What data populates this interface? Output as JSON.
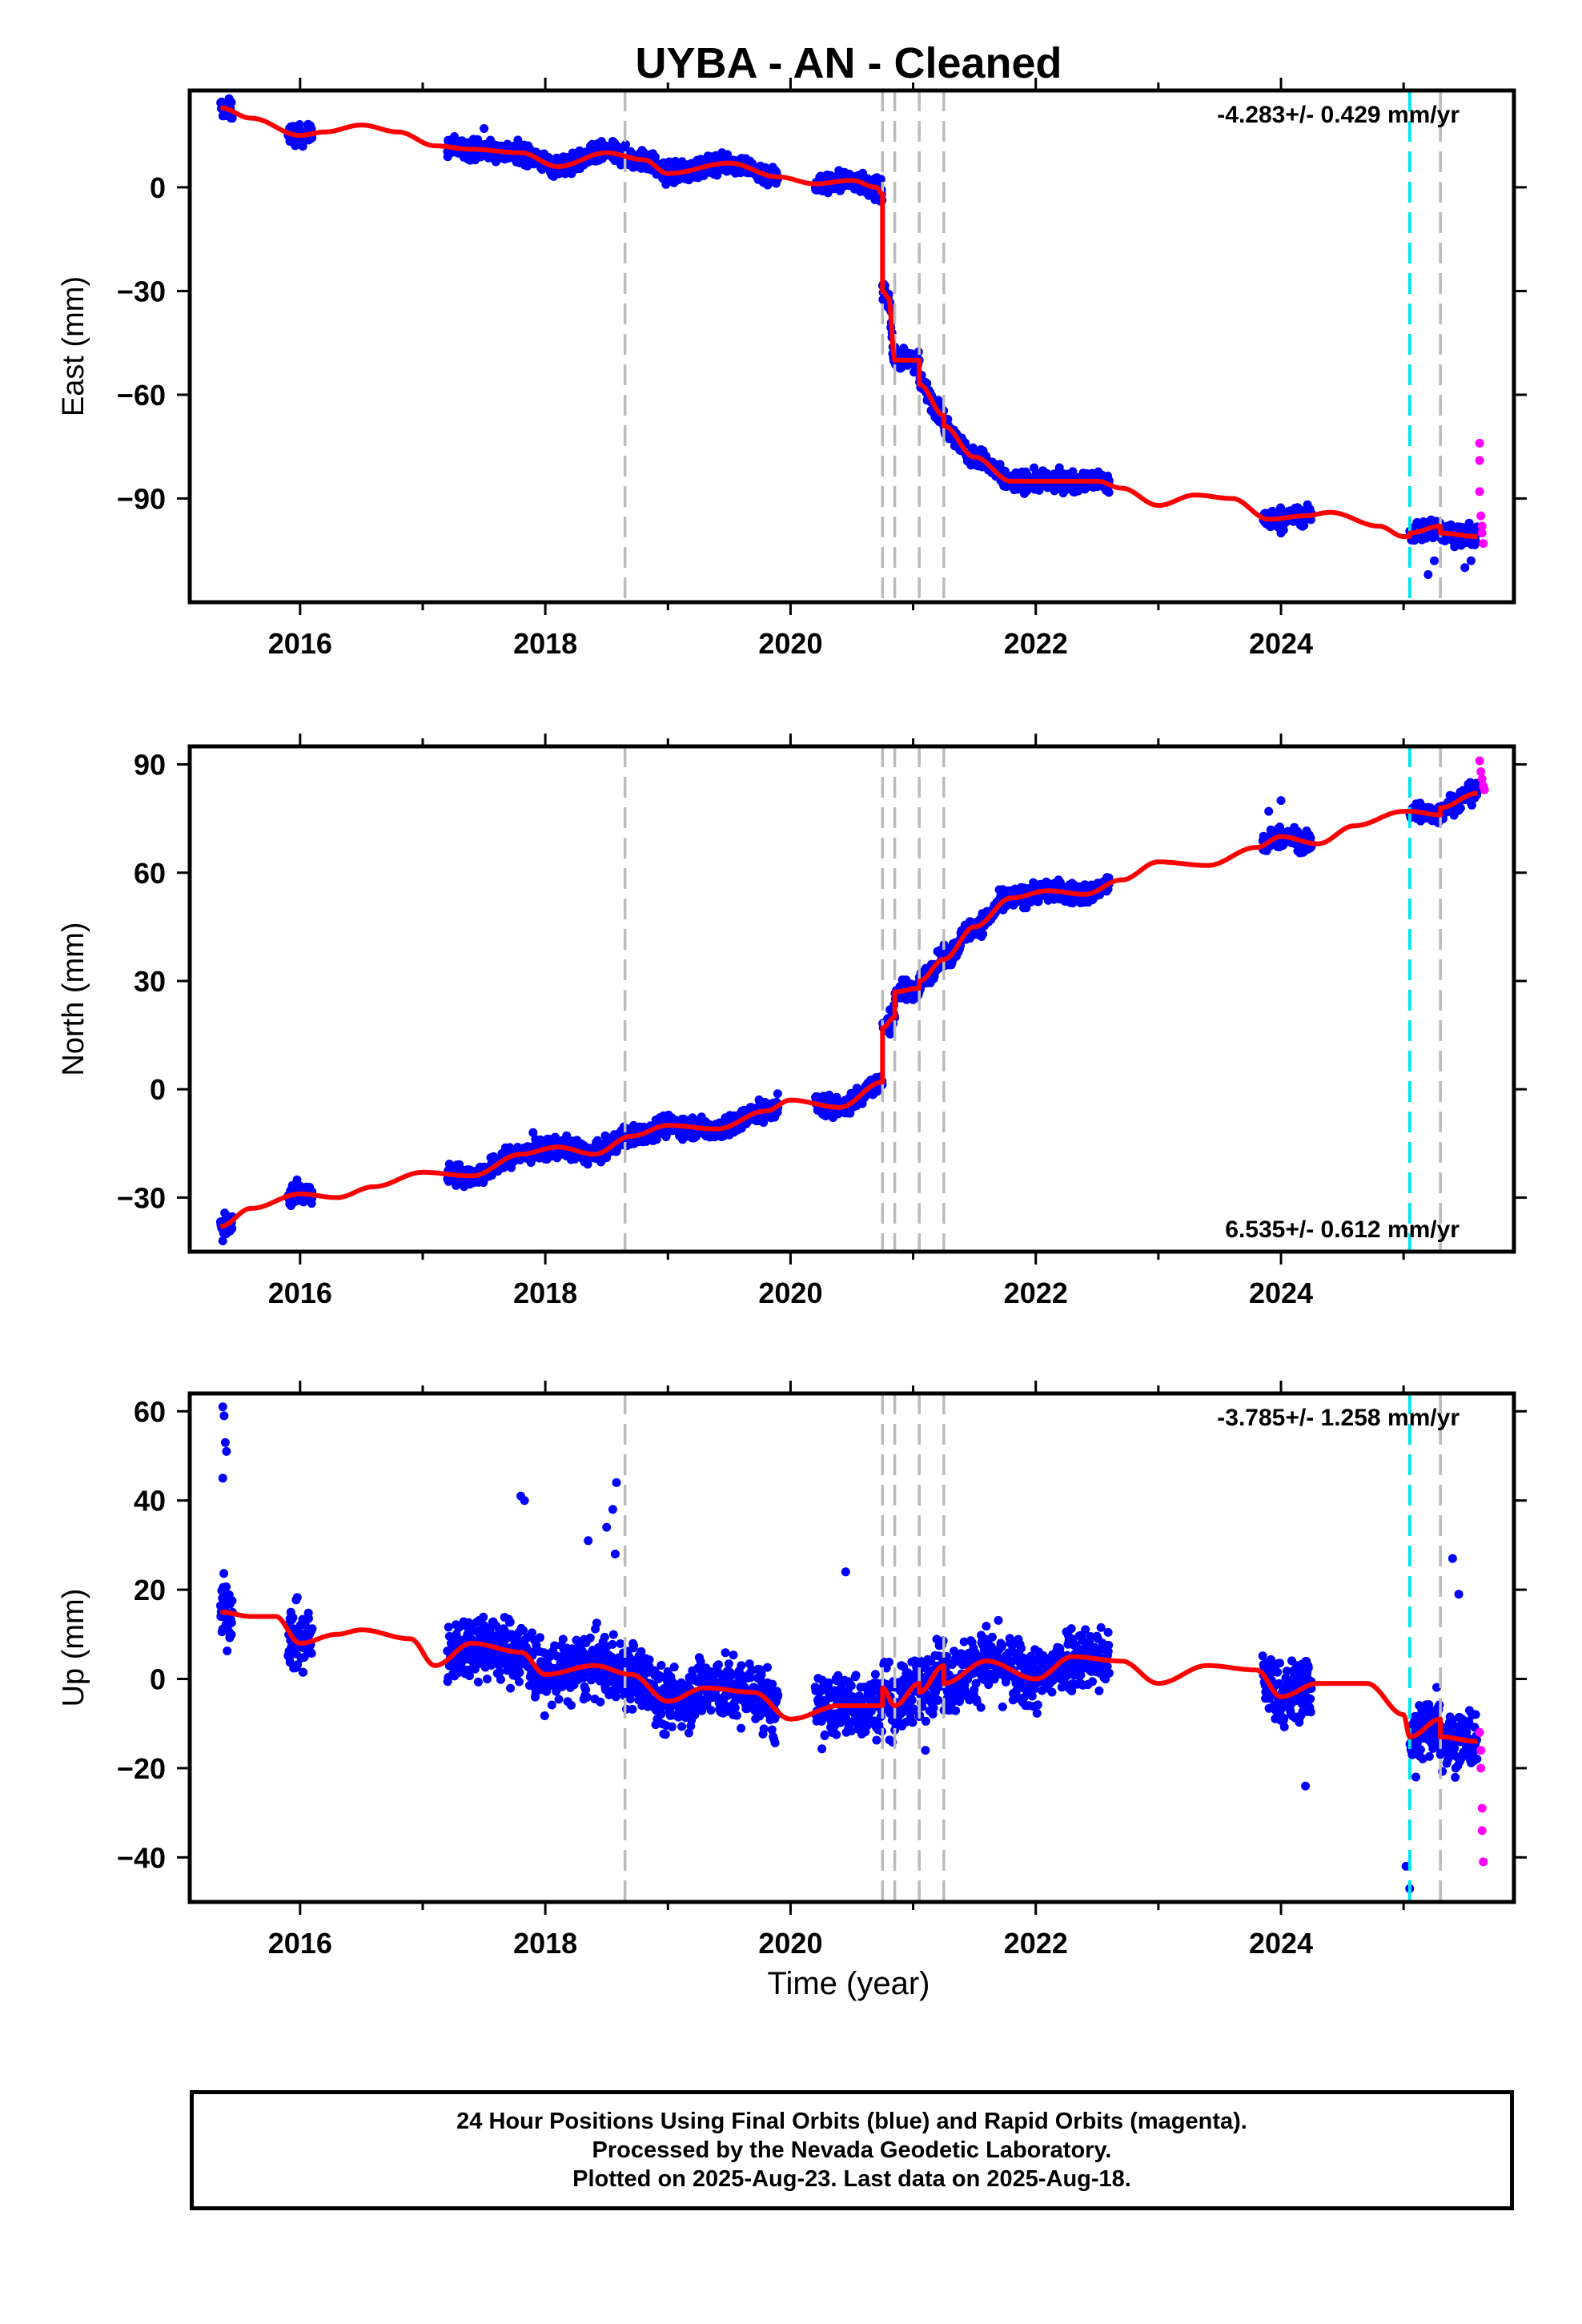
{
  "title": "UYBA  - AN - Cleaned",
  "xlabel": "Time (year)",
  "footer": {
    "line1": "24 Hour Positions Using Final Orbits (blue) and Rapid Orbits (magenta).",
    "line2": "Processed by the Nevada Geodetic Laboratory.",
    "line3": "Plotted on 2025-Aug-23. Last data on 2025-Aug-18."
  },
  "colors": {
    "final_orbits": "#0000ff",
    "rapid_orbits": "#ff00ff",
    "model": "#ff0000",
    "equipment_change": "#bbbbbb",
    "earthquake": "#00e5ee"
  },
  "chart_data": [
    {
      "type": "scatter",
      "ylabel": "East (mm)",
      "rate": "-4.283+/- 0.429 mm/yr",
      "rate_position": "top-right",
      "xlim": [
        2015.1,
        2025.9
      ],
      "ylim": [
        -120,
        28
      ],
      "xticks": [
        2016,
        2018,
        2020,
        2022,
        2024
      ],
      "yticks": [
        0,
        -30,
        -60,
        -90
      ],
      "grid": false,
      "equipment_changes": [
        2018.65,
        2020.75,
        2020.85,
        2021.05,
        2021.25,
        2025.3
      ],
      "earthquakes": [
        2025.05
      ],
      "data_segments": [
        [
          2015.35,
          2015.45
        ],
        [
          2015.9,
          2016.1
        ],
        [
          2017.2,
          2019.9
        ],
        [
          2020.2,
          2022.6
        ],
        [
          2023.85,
          2024.25
        ],
        [
          2025.05,
          2025.6
        ]
      ],
      "model_knots": [
        [
          2015.35,
          23
        ],
        [
          2015.6,
          20
        ],
        [
          2016.0,
          15
        ],
        [
          2016.2,
          16
        ],
        [
          2016.5,
          18
        ],
        [
          2016.8,
          16
        ],
        [
          2017.1,
          12
        ],
        [
          2017.4,
          11
        ],
        [
          2017.8,
          10
        ],
        [
          2018.1,
          6
        ],
        [
          2018.5,
          10
        ],
        [
          2018.8,
          8
        ],
        [
          2019.0,
          4
        ],
        [
          2019.5,
          7
        ],
        [
          2019.9,
          3
        ],
        [
          2020.2,
          1
        ],
        [
          2020.5,
          2
        ],
        [
          2020.7,
          0
        ],
        [
          2020.75,
          -2
        ],
        [
          2020.75,
          -30
        ],
        [
          2020.8,
          -32
        ],
        [
          2020.85,
          -50
        ],
        [
          2021.05,
          -50
        ],
        [
          2021.05,
          -57
        ],
        [
          2021.25,
          -66
        ],
        [
          2021.25,
          -69
        ],
        [
          2021.5,
          -78
        ],
        [
          2021.8,
          -85
        ],
        [
          2022.2,
          -85
        ],
        [
          2022.5,
          -85
        ],
        [
          2022.7,
          -87
        ],
        [
          2023.0,
          -92
        ],
        [
          2023.3,
          -89
        ],
        [
          2023.6,
          -90
        ],
        [
          2023.9,
          -96
        ],
        [
          2024.2,
          -95
        ],
        [
          2024.4,
          -94
        ],
        [
          2024.8,
          -98
        ],
        [
          2025.0,
          -101
        ],
        [
          2025.05,
          -101
        ],
        [
          2025.05,
          -100
        ],
        [
          2025.3,
          -98
        ],
        [
          2025.3,
          -100
        ],
        [
          2025.6,
          -101
        ]
      ],
      "rapid_points": [
        [
          2025.62,
          -74
        ],
        [
          2025.62,
          -79
        ],
        [
          2025.62,
          -88
        ],
        [
          2025.63,
          -95
        ],
        [
          2025.64,
          -98
        ],
        [
          2025.64,
          -100
        ],
        [
          2025.65,
          -103
        ]
      ],
      "outliers": [
        [
          2015.37,
          24
        ],
        [
          2015.4,
          22
        ],
        [
          2015.43,
          25
        ],
        [
          2017.5,
          17
        ],
        [
          2018.45,
          13
        ],
        [
          2024.0,
          -100
        ],
        [
          2025.2,
          -112
        ],
        [
          2025.25,
          -108
        ],
        [
          2025.5,
          -110
        ],
        [
          2025.55,
          -108
        ]
      ]
    },
    {
      "type": "scatter",
      "ylabel": "North (mm)",
      "rate": "6.535+/- 0.612 mm/yr",
      "rate_position": "bottom-right",
      "xlim": [
        2015.1,
        2025.9
      ],
      "ylim": [
        -45,
        95
      ],
      "xticks": [
        2016,
        2018,
        2020,
        2022,
        2024
      ],
      "yticks": [
        90,
        60,
        30,
        0,
        -30
      ],
      "grid": false,
      "equipment_changes": [
        2018.65,
        2020.75,
        2020.85,
        2021.05,
        2021.25,
        2025.3
      ],
      "earthquakes": [
        2025.05
      ],
      "data_segments": [
        [
          2015.35,
          2015.45
        ],
        [
          2015.9,
          2016.1
        ],
        [
          2017.2,
          2019.9
        ],
        [
          2020.2,
          2022.6
        ],
        [
          2023.85,
          2024.25
        ],
        [
          2025.05,
          2025.6
        ]
      ],
      "model_knots": [
        [
          2015.35,
          -38
        ],
        [
          2015.6,
          -33
        ],
        [
          2016.0,
          -29
        ],
        [
          2016.3,
          -30
        ],
        [
          2016.6,
          -27
        ],
        [
          2017.0,
          -23
        ],
        [
          2017.4,
          -24
        ],
        [
          2017.8,
          -18
        ],
        [
          2018.1,
          -16
        ],
        [
          2018.4,
          -18
        ],
        [
          2018.7,
          -13
        ],
        [
          2019.0,
          -10
        ],
        [
          2019.4,
          -11
        ],
        [
          2019.8,
          -6
        ],
        [
          2020.0,
          -3
        ],
        [
          2020.4,
          -5
        ],
        [
          2020.75,
          2
        ],
        [
          2020.75,
          17
        ],
        [
          2020.85,
          20
        ],
        [
          2020.85,
          27
        ],
        [
          2021.05,
          28
        ],
        [
          2021.05,
          30
        ],
        [
          2021.25,
          36
        ],
        [
          2021.5,
          45
        ],
        [
          2021.8,
          53
        ],
        [
          2022.1,
          55
        ],
        [
          2022.4,
          54
        ],
        [
          2022.7,
          58
        ],
        [
          2023.0,
          63
        ],
        [
          2023.4,
          62
        ],
        [
          2023.8,
          67
        ],
        [
          2024.0,
          70
        ],
        [
          2024.3,
          68
        ],
        [
          2024.6,
          73
        ],
        [
          2025.0,
          77
        ],
        [
          2025.05,
          77
        ],
        [
          2025.3,
          76
        ],
        [
          2025.3,
          78
        ],
        [
          2025.6,
          82
        ]
      ],
      "rapid_points": [
        [
          2025.62,
          91
        ],
        [
          2025.63,
          88
        ],
        [
          2025.64,
          86
        ],
        [
          2025.65,
          84
        ],
        [
          2025.66,
          83
        ]
      ],
      "outliers": [
        [
          2015.37,
          -42
        ],
        [
          2015.4,
          -40
        ],
        [
          2017.9,
          -12
        ],
        [
          2024.0,
          80
        ],
        [
          2023.9,
          77
        ]
      ]
    },
    {
      "type": "scatter",
      "ylabel": "Up (mm)",
      "rate": "-3.785+/- 1.258 mm/yr",
      "rate_position": "top-right",
      "xlim": [
        2015.1,
        2025.9
      ],
      "ylim": [
        -50,
        64
      ],
      "xticks": [
        2016,
        2018,
        2020,
        2022,
        2024
      ],
      "yticks": [
        60,
        40,
        20,
        0,
        -20,
        -40
      ],
      "grid": false,
      "equipment_changes": [
        2018.65,
        2020.75,
        2020.85,
        2021.05,
        2021.25,
        2025.3
      ],
      "earthquakes": [
        2025.05
      ],
      "data_segments": [
        [
          2015.35,
          2015.45
        ],
        [
          2015.9,
          2016.1
        ],
        [
          2017.2,
          2019.9
        ],
        [
          2020.2,
          2022.6
        ],
        [
          2023.85,
          2024.25
        ],
        [
          2025.05,
          2025.6
        ]
      ],
      "model_knots": [
        [
          2015.35,
          15
        ],
        [
          2015.6,
          14
        ],
        [
          2015.8,
          14
        ],
        [
          2016.0,
          8
        ],
        [
          2016.3,
          10
        ],
        [
          2016.5,
          11
        ],
        [
          2016.9,
          9
        ],
        [
          2017.1,
          3
        ],
        [
          2017.4,
          8
        ],
        [
          2017.8,
          6
        ],
        [
          2018.0,
          1
        ],
        [
          2018.4,
          3
        ],
        [
          2018.7,
          1
        ],
        [
          2019.0,
          -5
        ],
        [
          2019.3,
          -2
        ],
        [
          2019.7,
          -3
        ],
        [
          2020.0,
          -9
        ],
        [
          2020.4,
          -6
        ],
        [
          2020.75,
          -6
        ],
        [
          2020.75,
          -2
        ],
        [
          2020.85,
          -6
        ],
        [
          2021.05,
          -1
        ],
        [
          2021.05,
          -3
        ],
        [
          2021.25,
          3
        ],
        [
          2021.25,
          -1
        ],
        [
          2021.6,
          4
        ],
        [
          2022.0,
          0
        ],
        [
          2022.3,
          5
        ],
        [
          2022.7,
          4
        ],
        [
          2023.0,
          -1
        ],
        [
          2023.4,
          3
        ],
        [
          2023.8,
          2
        ],
        [
          2024.0,
          -4
        ],
        [
          2024.3,
          -1
        ],
        [
          2024.7,
          -1
        ],
        [
          2025.0,
          -8
        ],
        [
          2025.05,
          -13
        ],
        [
          2025.3,
          -9
        ],
        [
          2025.3,
          -13
        ],
        [
          2025.6,
          -14
        ]
      ],
      "rapid_points": [
        [
          2025.62,
          -12
        ],
        [
          2025.63,
          -16
        ],
        [
          2025.63,
          -20
        ],
        [
          2025.64,
          -29
        ],
        [
          2025.64,
          -34
        ],
        [
          2025.65,
          -41
        ]
      ],
      "outliers": [
        [
          2015.37,
          61
        ],
        [
          2015.38,
          59
        ],
        [
          2015.39,
          53
        ],
        [
          2015.4,
          51
        ],
        [
          2015.37,
          45
        ],
        [
          2017.8,
          41
        ],
        [
          2017.83,
          40
        ],
        [
          2018.35,
          31
        ],
        [
          2018.5,
          34
        ],
        [
          2018.55,
          38
        ],
        [
          2018.58,
          44
        ],
        [
          2018.57,
          28
        ],
        [
          2020.45,
          24
        ],
        [
          2021.1,
          -16
        ],
        [
          2024.2,
          -24
        ],
        [
          2025.02,
          -42
        ],
        [
          2025.05,
          -47
        ],
        [
          2025.4,
          27
        ],
        [
          2025.45,
          19
        ],
        [
          2025.1,
          -22
        ]
      ]
    }
  ]
}
